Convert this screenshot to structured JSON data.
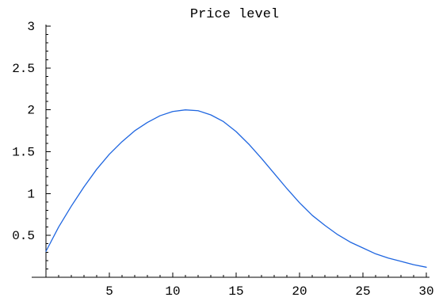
{
  "chart_data": {
    "type": "line",
    "title": "Price level",
    "xlabel": "",
    "ylabel": "",
    "xlim": [
      0,
      30
    ],
    "ylim": [
      0,
      3
    ],
    "x_ticks": [
      5,
      10,
      15,
      20,
      25,
      30
    ],
    "x_tick_labels": [
      "5",
      "10",
      "15",
      "20",
      "25",
      "30"
    ],
    "y_ticks": [
      0.5,
      1,
      1.5,
      2,
      2.5,
      3
    ],
    "y_tick_labels": [
      "0.5",
      "1",
      "1.5",
      "2",
      "2.5",
      "3"
    ],
    "grid": false,
    "series": [
      {
        "color": "#1f66e0",
        "x": [
          0,
          1,
          2,
          3,
          4,
          5,
          6,
          7,
          8,
          9,
          10,
          11,
          12,
          13,
          14,
          15,
          16,
          17,
          18,
          19,
          20,
          21,
          22,
          23,
          24,
          25,
          26,
          27,
          28,
          29,
          30
        ],
        "y": [
          0.31,
          0.6,
          0.85,
          1.08,
          1.29,
          1.47,
          1.62,
          1.75,
          1.85,
          1.93,
          1.98,
          2.0,
          1.99,
          1.94,
          1.86,
          1.74,
          1.59,
          1.42,
          1.24,
          1.06,
          0.89,
          0.74,
          0.62,
          0.51,
          0.42,
          0.35,
          0.28,
          0.23,
          0.19,
          0.15,
          0.12
        ]
      }
    ]
  }
}
